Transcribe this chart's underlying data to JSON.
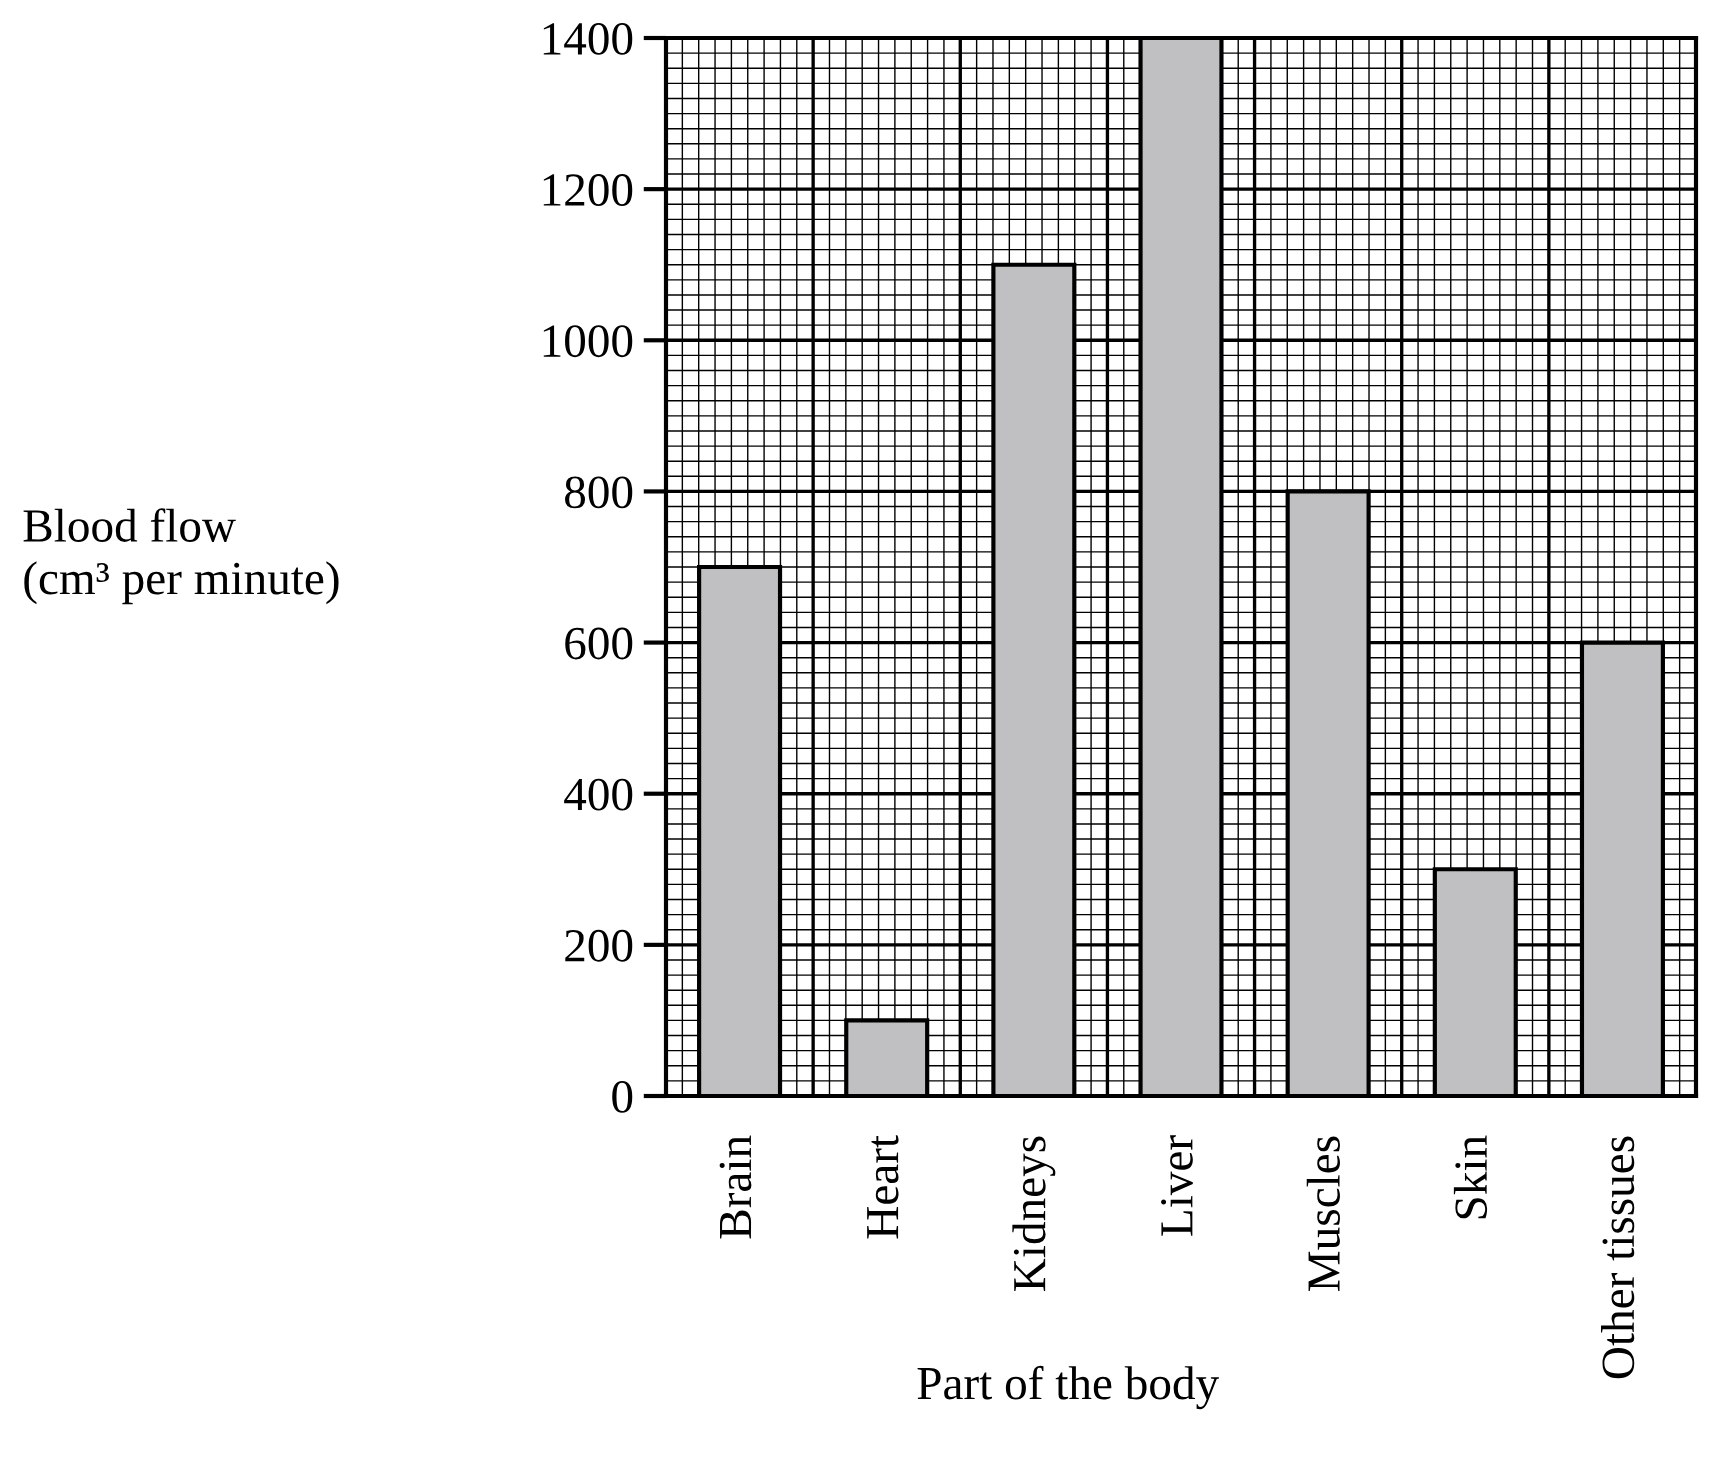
{
  "chart_data": {
    "type": "bar",
    "categories": [
      "Brain",
      "Heart",
      "Kidneys",
      "Liver",
      "Muscles",
      "Skin",
      "Other tissues"
    ],
    "values": [
      700,
      100,
      1100,
      1400,
      800,
      300,
      600
    ],
    "color": "#c0c0c2",
    "xlabel": "Part of the body",
    "ylabel": "Blood flow\n(cm³ per minute)",
    "ylim": [
      0,
      1400
    ],
    "yticks": [
      0,
      200,
      400,
      600,
      800,
      1000,
      1200,
      1400
    ],
    "grid": true
  }
}
